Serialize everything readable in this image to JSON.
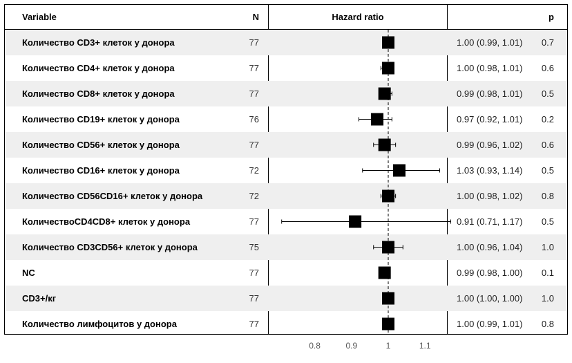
{
  "headers": {
    "variable": "Variable",
    "n": "N",
    "hr": "Hazard ratio",
    "p": "p"
  },
  "chart_data": {
    "type": "forest",
    "reference_line": 1,
    "x_ticks": [
      0.8,
      0.9,
      1,
      1.1
    ],
    "x_tick_labels": [
      "0.8",
      "0.9",
      "1",
      "1.1"
    ],
    "rows": [
      {
        "variable": "Количество CD3+ клеток у донора",
        "n": "77",
        "hr": 1.0,
        "lo": 0.99,
        "hi": 1.01,
        "ci_text": "1.00 (0.99, 1.01)",
        "p": "0.7"
      },
      {
        "variable": "Количество CD4+ клеток у донора",
        "n": "77",
        "hr": 1.0,
        "lo": 0.98,
        "hi": 1.01,
        "ci_text": "1.00 (0.98, 1.01)",
        "p": "0.6"
      },
      {
        "variable": "Количество CD8+ клеток у донора",
        "n": "77",
        "hr": 0.99,
        "lo": 0.98,
        "hi": 1.01,
        "ci_text": "0.99 (0.98, 1.01)",
        "p": "0.5"
      },
      {
        "variable": "Количество CD19+ клеток у донора",
        "n": "76",
        "hr": 0.97,
        "lo": 0.92,
        "hi": 1.01,
        "ci_text": "0.97 (0.92, 1.01)",
        "p": "0.2"
      },
      {
        "variable": "Количество CD56+ клеток у донора",
        "n": "77",
        "hr": 0.99,
        "lo": 0.96,
        "hi": 1.02,
        "ci_text": "0.99 (0.96, 1.02)",
        "p": "0.6"
      },
      {
        "variable": "Количество CD16+ клеток у донора",
        "n": "72",
        "hr": 1.03,
        "lo": 0.93,
        "hi": 1.14,
        "ci_text": "1.03 (0.93, 1.14)",
        "p": "0.5"
      },
      {
        "variable": "Количество CD56CD16+ клеток у донора",
        "n": "72",
        "hr": 1.0,
        "lo": 0.98,
        "hi": 1.02,
        "ci_text": "1.00 (0.98, 1.02)",
        "p": "0.8"
      },
      {
        "variable": "КоличествоCD4CD8+ клеток у донора",
        "n": "77",
        "hr": 0.91,
        "lo": 0.71,
        "hi": 1.17,
        "ci_text": "0.91 (0.71, 1.17)",
        "p": "0.5"
      },
      {
        "variable": "Количество CD3CD56+ клеток у донора",
        "n": "75",
        "hr": 1.0,
        "lo": 0.96,
        "hi": 1.04,
        "ci_text": "1.00 (0.96, 1.04)",
        "p": "1.0"
      },
      {
        "variable": "NC",
        "n": "77",
        "hr": 0.99,
        "lo": 0.98,
        "hi": 1.0,
        "ci_text": "0.99 (0.98, 1.00)",
        "p": "0.1"
      },
      {
        "variable": "CD3+/кг",
        "n": "77",
        "hr": 1.0,
        "lo": 1.0,
        "hi": 1.0,
        "ci_text": "1.00 (1.00, 1.00)",
        "p": "1.0"
      },
      {
        "variable": "Количество лимфоцитов у донора",
        "n": "77",
        "hr": 1.0,
        "lo": 0.99,
        "hi": 1.01,
        "ci_text": "1.00 (0.99, 1.01)",
        "p": "0.8"
      }
    ]
  }
}
